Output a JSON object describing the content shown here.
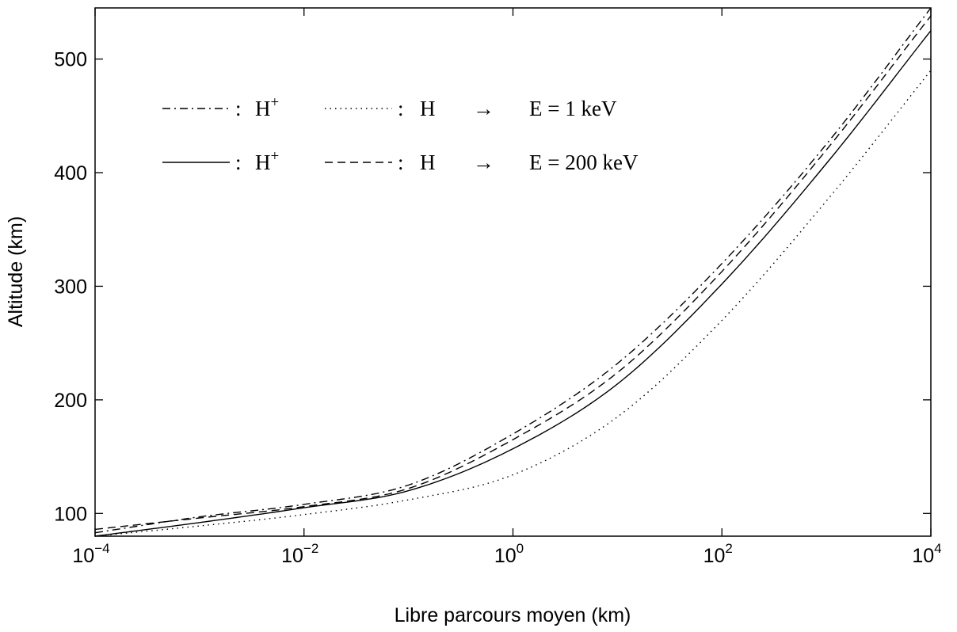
{
  "chart_data": {
    "type": "line",
    "xscale": "log",
    "xlim": [
      0.0001,
      10000
    ],
    "ylim": [
      80,
      545
    ],
    "xlabel": "Libre parcours moyen (km)",
    "ylabel": "Altitude (km)",
    "title": "",
    "grid": false,
    "legend_position": "top-left",
    "x_ticks": [
      {
        "base": "10",
        "exp": "-4",
        "value": 0.0001
      },
      {
        "base": "10",
        "exp": "-2",
        "value": 0.01
      },
      {
        "base": "10",
        "exp": "0",
        "value": 1
      },
      {
        "base": "10",
        "exp": "2",
        "value": 100
      },
      {
        "base": "10",
        "exp": "4",
        "value": 10000
      }
    ],
    "y_ticks": [
      "100",
      "200",
      "300",
      "400",
      "500"
    ],
    "series": [
      {
        "key": "hplus_1kev",
        "dash": "dashdot",
        "points": [
          [
            0.0001,
            83
          ],
          [
            0.001,
            97
          ],
          [
            0.01,
            108
          ],
          [
            0.1,
            125
          ],
          [
            1,
            170
          ],
          [
            10,
            232
          ],
          [
            100,
            320
          ],
          [
            1000,
            425
          ],
          [
            10000,
            545
          ]
        ]
      },
      {
        "key": "h_1kev",
        "dash": "dotted",
        "points": [
          [
            0.0001,
            80
          ],
          [
            0.001,
            89
          ],
          [
            0.01,
            99
          ],
          [
            0.1,
            112
          ],
          [
            1,
            134
          ],
          [
            10,
            185
          ],
          [
            100,
            270
          ],
          [
            1000,
            375
          ],
          [
            10000,
            490
          ]
        ]
      },
      {
        "key": "hplus_200kev",
        "dash": "solid",
        "points": [
          [
            0.0001,
            80
          ],
          [
            0.001,
            92
          ],
          [
            0.01,
            105
          ],
          [
            0.1,
            120
          ],
          [
            1,
            157
          ],
          [
            10,
            214
          ],
          [
            100,
            302
          ],
          [
            1000,
            408
          ],
          [
            10000,
            525
          ]
        ]
      },
      {
        "key": "h_200kev",
        "dash": "dashed",
        "points": [
          [
            0.0001,
            86
          ],
          [
            0.001,
            96
          ],
          [
            0.01,
            106
          ],
          [
            0.1,
            122
          ],
          [
            1,
            165
          ],
          [
            10,
            224
          ],
          [
            100,
            313
          ],
          [
            1000,
            420
          ],
          [
            10000,
            538
          ]
        ]
      }
    ],
    "legend": [
      {
        "rows": [
          {
            "key": "hplus_1kev",
            "dash": "dashdot",
            "sep": ":",
            "species": "H",
            "sup": "+"
          },
          {
            "key": "h_1kev",
            "dash": "dotted",
            "sep": ":",
            "species": "H",
            "sup": ""
          }
        ],
        "arrow": "→",
        "energy": "E = 1 keV"
      },
      {
        "rows": [
          {
            "key": "hplus_200kev",
            "dash": "solid",
            "sep": ":",
            "species": "H",
            "sup": "+"
          },
          {
            "key": "h_200kev",
            "dash": "dashed",
            "sep": ":",
            "species": "H",
            "sup": ""
          }
        ],
        "arrow": "→",
        "energy": "E = 200 keV"
      }
    ]
  }
}
